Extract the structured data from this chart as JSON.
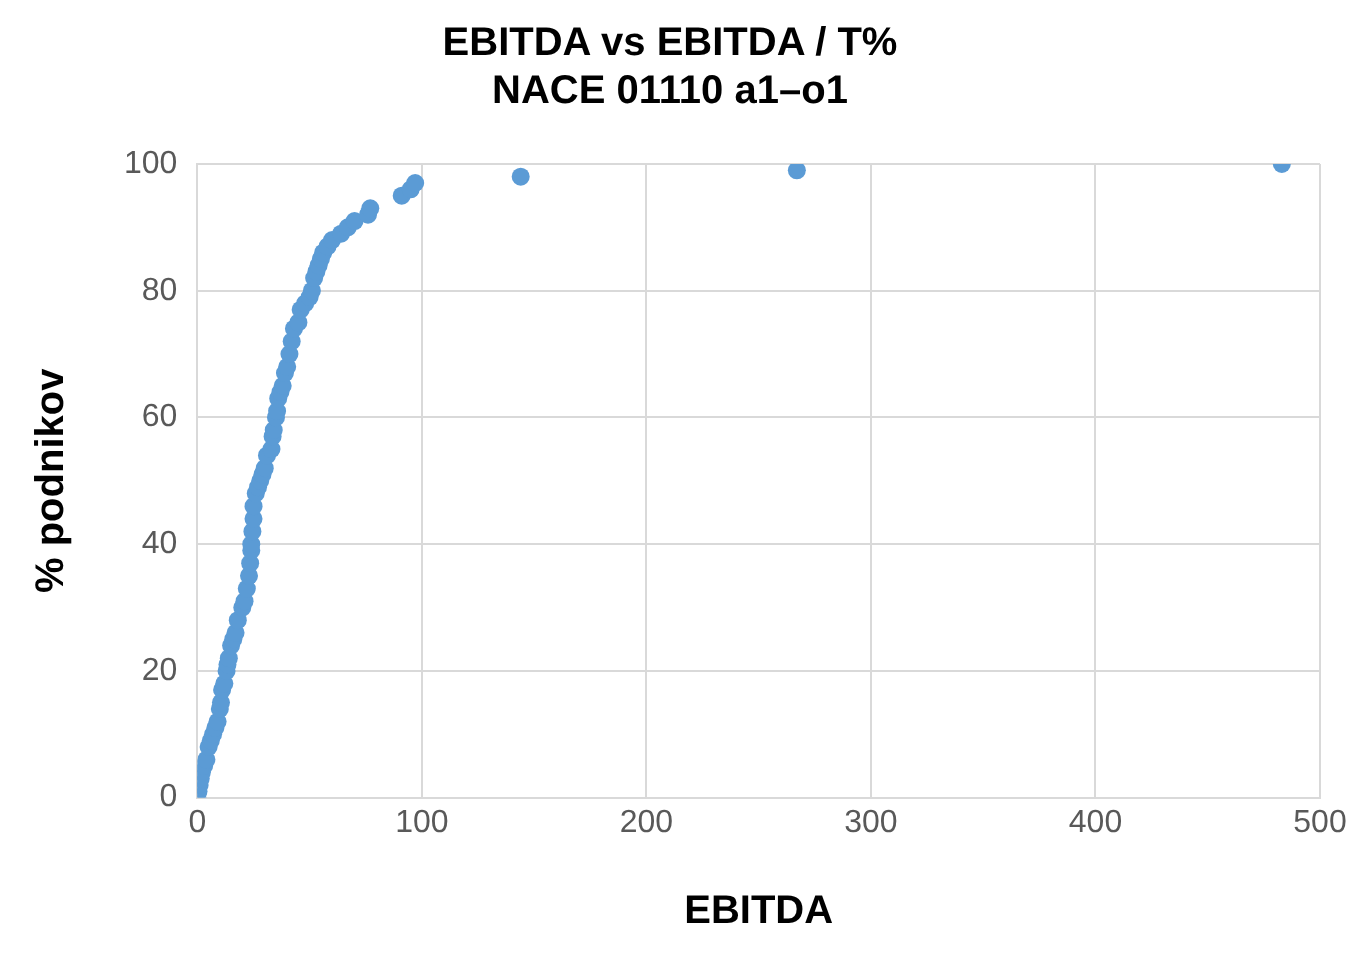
{
  "chart_data": {
    "type": "scatter",
    "title": "EBITDA vs EBITDA / T%\nNACE 01110 a1–o1",
    "xlabel": "EBITDA",
    "ylabel": "% podnikov",
    "xlim": [
      0,
      500
    ],
    "xticks": [
      0,
      100,
      200,
      300,
      400,
      500
    ],
    "ylim": [
      0,
      100
    ],
    "yticks": [
      0,
      20,
      40,
      60,
      80,
      100
    ],
    "grid": true,
    "legend": false,
    "marker": "circle",
    "series": [
      {
        "color": "#5b9bd5",
        "x": [
          0,
          0.5,
          1,
          1.5,
          2,
          3,
          4,
          5,
          6,
          7,
          8,
          9,
          10,
          10.5,
          11,
          12,
          13,
          13.4,
          14,
          15,
          16,
          17,
          18,
          20,
          21,
          22,
          23,
          23.5,
          24,
          24,
          24.5,
          25,
          25,
          26,
          27,
          28,
          29,
          30,
          31,
          33,
          33.5,
          34,
          35,
          35.5,
          36,
          37,
          38,
          39,
          40,
          41,
          42,
          43,
          45,
          46,
          48,
          50,
          51,
          52,
          53,
          54,
          55,
          56,
          58,
          60,
          64,
          67,
          70,
          76,
          77,
          91,
          95,
          97,
          144,
          267,
          483
        ],
        "values": [
          0,
          1,
          2,
          3,
          4,
          5,
          6,
          8,
          9,
          10,
          11,
          12,
          14,
          15,
          17,
          18,
          20,
          21,
          22,
          24,
          25,
          26,
          28,
          30,
          31,
          33,
          35,
          37,
          39,
          40,
          42,
          44,
          46,
          48,
          49,
          50,
          51,
          52,
          54,
          55,
          57,
          58,
          60,
          61,
          63,
          64,
          65,
          67,
          68,
          70,
          72,
          74,
          75,
          77,
          78,
          79,
          80,
          82,
          83,
          84,
          85,
          86,
          87,
          88,
          89,
          90,
          91,
          92,
          93,
          95,
          96,
          97,
          98,
          99,
          100
        ]
      }
    ]
  }
}
